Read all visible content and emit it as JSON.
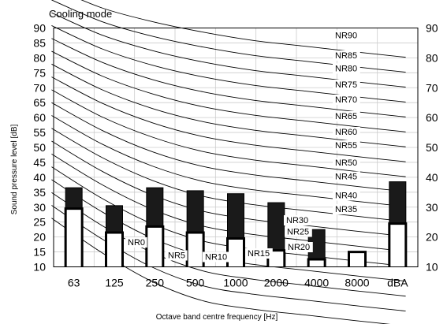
{
  "chart_data": {
    "type": "bar",
    "title": "Cooling mode",
    "xlabel": "Octave band centre frequency [Hz]",
    "ylabel": "Sound pressure level [dB]",
    "ylim": [
      10,
      90
    ],
    "y_ticks": [
      10,
      15,
      20,
      25,
      30,
      35,
      40,
      45,
      50,
      55,
      60,
      65,
      70,
      75,
      80,
      85,
      90
    ],
    "right_y_ticks": [
      10,
      20,
      30,
      40,
      50,
      60,
      70,
      80,
      90
    ],
    "grid": true,
    "categories": [
      "63",
      "125",
      "250",
      "500",
      "1000",
      "2000",
      "4000",
      "8000",
      "dBA"
    ],
    "series": [
      {
        "values": [
          29.5,
          21.5,
          23.5,
          21.5,
          19.5,
          15.5,
          12.5,
          15,
          24.5
        ],
        "color": "#ffffff"
      },
      {
        "values": [
          36.5,
          30.5,
          36.5,
          35.5,
          34.5,
          31.5,
          22.5,
          15,
          38.5
        ],
        "color": "#1a1a1a"
      }
    ],
    "nr_curves": [
      {
        "label": "NR90",
        "values": [
          103.7,
          96.7,
          92.1,
          88.6,
          85.8,
          83.9,
          82.0,
          80.2
        ]
      },
      {
        "label": "NR85",
        "values": [
          99.4,
          92.1,
          87.2,
          83.6,
          80.8,
          78.9,
          77.0,
          75.2
        ]
      },
      {
        "label": "NR80",
        "values": [
          95.1,
          87.6,
          82.4,
          78.6,
          75.8,
          73.9,
          72.0,
          70.2
        ]
      },
      {
        "label": "NR75",
        "values": [
          90.8,
          83.0,
          77.5,
          73.6,
          70.8,
          68.9,
          67.0,
          65.2
        ]
      },
      {
        "label": "NR70",
        "values": [
          86.5,
          78.5,
          72.7,
          68.6,
          65.8,
          63.9,
          62.0,
          60.2
        ]
      },
      {
        "label": "NR65",
        "values": [
          82.2,
          73.9,
          67.9,
          63.6,
          60.8,
          58.9,
          57.0,
          55.2
        ]
      },
      {
        "label": "NR60",
        "values": [
          77.9,
          69.3,
          63.0,
          58.6,
          55.8,
          53.9,
          52.0,
          50.2
        ]
      },
      {
        "label": "NR55",
        "values": [
          73.6,
          64.8,
          58.2,
          53.6,
          50.8,
          48.9,
          47.0,
          45.2
        ]
      },
      {
        "label": "NR50",
        "values": [
          69.3,
          60.2,
          53.4,
          48.6,
          45.8,
          43.9,
          42.0,
          40.2
        ]
      },
      {
        "label": "NR45",
        "values": [
          65.0,
          55.7,
          48.5,
          43.6,
          40.8,
          38.9,
          37.0,
          35.2
        ]
      },
      {
        "label": "NR40",
        "values": [
          60.7,
          51.1,
          43.7,
          38.6,
          35.8,
          33.9,
          32.0,
          30.2
        ]
      },
      {
        "label": "NR35",
        "values": [
          56.4,
          46.6,
          38.9,
          33.6,
          30.8,
          28.9,
          27.0,
          25.2
        ]
      },
      {
        "label": "NR30",
        "values": [
          52.1,
          42.0,
          34.0,
          28.6,
          25.8,
          23.9,
          22.0,
          20.2
        ]
      },
      {
        "label": "NR25",
        "values": [
          47.8,
          37.5,
          29.2,
          23.6,
          20.8,
          18.9,
          17.0,
          15.2
        ]
      },
      {
        "label": "NR20",
        "values": [
          43.5,
          32.9,
          24.3,
          18.6,
          15.8,
          13.9,
          12.0,
          10.2
        ]
      },
      {
        "label": "NR15",
        "values": [
          39.2,
          28.4,
          19.5,
          13.6,
          10.8,
          8.9,
          7.0,
          5.2
        ]
      },
      {
        "label": "NR10",
        "values": [
          34.9,
          23.8,
          14.7,
          8.6,
          5.8,
          3.9,
          2.0,
          0.2
        ]
      },
      {
        "label": "NR5",
        "values": [
          30.6,
          19.3,
          9.8,
          3.6,
          0.8,
          -1.1,
          -3.0,
          -4.8
        ]
      },
      {
        "label": "NR0",
        "values": [
          26.3,
          14.7,
          5.0,
          -1.4,
          -4.2,
          -6.1,
          -8.0,
          -9.8
        ]
      }
    ]
  }
}
